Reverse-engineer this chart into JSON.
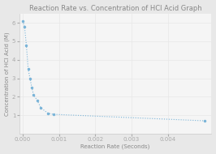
{
  "title": "Reaction Rate vs. Concentration of HCl Acid Graph",
  "xlabel": "Reaction Rate (Seconds)",
  "ylabel": "Concentration of HCl Acid (M)",
  "x_data": [
    0.0,
    5e-05,
    0.0001,
    0.00015,
    0.0002,
    0.00025,
    0.0003,
    0.0004,
    0.0005,
    0.0007,
    0.00085,
    0.005
  ],
  "y_data": [
    6.1,
    5.8,
    4.8,
    3.5,
    3.0,
    2.5,
    2.1,
    1.8,
    1.4,
    1.1,
    1.05,
    0.7
  ],
  "line_color": "#7ab4d8",
  "marker": "o",
  "marker_size": 1.5,
  "line_width": 0.8,
  "xlim": [
    -0.0001,
    0.0052
  ],
  "ylim": [
    0,
    6.5
  ],
  "yticks": [
    1,
    2,
    3,
    4,
    5,
    6
  ],
  "xticks": [
    0,
    0.001,
    0.002,
    0.003,
    0.004
  ],
  "grid_color": "#e8e8e8",
  "plot_bg_color": "#f5f5f5",
  "fig_bg_color": "#e8e8e8",
  "title_fontsize": 6,
  "label_fontsize": 5,
  "tick_fontsize": 5,
  "title_color": "#888888",
  "label_color": "#888888",
  "tick_color": "#aaaaaa",
  "spine_color": "#cccccc"
}
